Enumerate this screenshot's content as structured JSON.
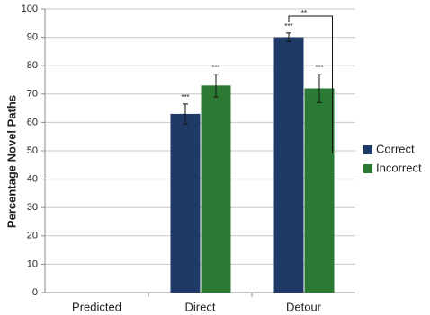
{
  "chart_data": {
    "type": "bar",
    "y_label": "Percentage Novel Paths",
    "categories": [
      "Predicted",
      "Direct",
      "Detour"
    ],
    "series": [
      {
        "name": "Correct",
        "color": "#1f3a66",
        "values": [
          null,
          63,
          90
        ],
        "errors": [
          null,
          3.5,
          1.5
        ],
        "significance": [
          null,
          "***",
          "***"
        ]
      },
      {
        "name": "Incorrect",
        "color": "#2a7a33",
        "values": [
          null,
          73,
          72
        ],
        "errors": [
          null,
          4,
          5
        ],
        "significance": [
          null,
          "***",
          "***"
        ]
      }
    ],
    "bracket_label": "**",
    "ylim": [
      0,
      100
    ],
    "yticks": [
      0,
      10,
      20,
      30,
      40,
      50,
      60,
      70,
      80,
      90,
      100
    ],
    "grid": true
  }
}
